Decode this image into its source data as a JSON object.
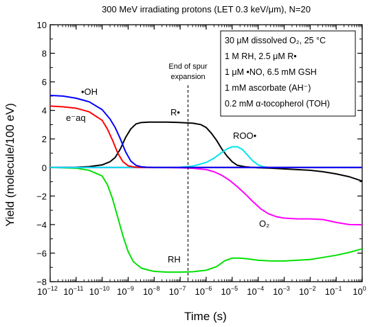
{
  "chart_data": {
    "type": "line",
    "title": "300 MeV irradiating protons (LET 0.3 keV/μm), N=20",
    "xlabel": "Time (s)",
    "ylabel": "Yield (molecule/100 eV)",
    "x_scale": "log",
    "xlim": [
      1e-12,
      1
    ],
    "ylim": [
      -8,
      10
    ],
    "x_ticks": [
      {
        "value": 1e-12,
        "base": "10",
        "exp": "−12"
      },
      {
        "value": 1e-11,
        "base": "10",
        "exp": "−11"
      },
      {
        "value": 1e-10,
        "base": "10",
        "exp": "−10"
      },
      {
        "value": 1e-09,
        "base": "10",
        "exp": "−9"
      },
      {
        "value": 1e-08,
        "base": "10",
        "exp": "−8"
      },
      {
        "value": 1e-07,
        "base": "10",
        "exp": "−7"
      },
      {
        "value": 1e-06,
        "base": "10",
        "exp": "−6"
      },
      {
        "value": 1e-05,
        "base": "10",
        "exp": "−5"
      },
      {
        "value": 0.0001,
        "base": "10",
        "exp": "−4"
      },
      {
        "value": 0.001,
        "base": "10",
        "exp": "−3"
      },
      {
        "value": 0.01,
        "base": "10",
        "exp": "−2"
      },
      {
        "value": 0.1,
        "base": "10",
        "exp": "−1"
      },
      {
        "value": 1,
        "base": "10",
        "exp": "0"
      }
    ],
    "y_ticks": [
      -8,
      -6,
      -4,
      -2,
      0,
      2,
      4,
      6,
      8,
      10
    ],
    "grid": false,
    "legend_position": "top-right",
    "legend_lines": [
      "30 μM dissolved O₂, 25 °C",
      "1 M RH, 2.5 μM R•",
      "1 μM •NO, 6.5 mM GSH",
      "1 mM ascorbate (AH⁻)",
      "0.2 mM α-tocopherol (TOH)"
    ],
    "annotation": {
      "text_line1": "End of spur",
      "text_line2": "expansion",
      "x": 2e-07
    },
    "series": [
      {
        "name": "•OH",
        "color": "#0000ff",
        "log_x": [
          -12,
          -11.5,
          -11,
          -10.5,
          -10,
          -9.7,
          -9.5,
          -9.3,
          -9.1,
          -8.9,
          -8.7,
          -8.5,
          -8.3,
          -8,
          -7,
          -6,
          -4,
          -2,
          0
        ],
        "y": [
          5.05,
          5.0,
          4.85,
          4.6,
          4.05,
          3.4,
          2.8,
          2.0,
          1.1,
          0.45,
          0.15,
          0.05,
          0.02,
          0,
          0,
          0,
          0,
          0,
          0
        ]
      },
      {
        "name": "e⁻aq",
        "color": "#ff0000",
        "log_x": [
          -12,
          -11.5,
          -11,
          -10.5,
          -10,
          -9.8,
          -9.6,
          -9.4,
          -9.2,
          -9.0,
          -8.8,
          -8.6,
          -8.3,
          -8,
          -7,
          -6,
          -4,
          -2,
          0
        ],
        "y": [
          4.3,
          4.25,
          4.15,
          3.9,
          3.3,
          2.7,
          1.9,
          1.0,
          0.4,
          0.12,
          0.04,
          0.01,
          0,
          0,
          0,
          0,
          0,
          0,
          0
        ]
      },
      {
        "name": "R•",
        "color": "#000000",
        "log_x": [
          -12,
          -11,
          -10.5,
          -10,
          -9.7,
          -9.5,
          -9.3,
          -9.1,
          -8.9,
          -8.7,
          -8.5,
          -8.2,
          -8,
          -7.5,
          -7,
          -6.5,
          -6.2,
          -6,
          -5.8,
          -5.6,
          -5.4,
          -5.2,
          -5.0,
          -4.8,
          -4.5,
          -4.2,
          -4,
          -3.5,
          -3,
          -2.5,
          -2,
          -1.5,
          -1,
          -0.5,
          0
        ],
        "y": [
          0,
          0.02,
          0.06,
          0.18,
          0.4,
          0.7,
          1.3,
          2.1,
          2.7,
          3.05,
          3.15,
          3.18,
          3.18,
          3.18,
          3.15,
          3.1,
          3.0,
          2.8,
          2.4,
          1.9,
          1.3,
          0.8,
          0.4,
          0.15,
          0.05,
          0.0,
          -0.02,
          -0.05,
          -0.1,
          -0.15,
          -0.2,
          -0.3,
          -0.45,
          -0.65,
          -0.95
        ]
      },
      {
        "name": "ROO•",
        "color": "#00e5ee",
        "log_x": [
          -12,
          -8,
          -7,
          -6.5,
          -6,
          -5.7,
          -5.4,
          -5.2,
          -5.0,
          -4.8,
          -4.6,
          -4.4,
          -4.2,
          -4.0,
          -3.8,
          -3.6,
          -3.4,
          -3,
          -2,
          0
        ],
        "y": [
          0,
          0,
          0.02,
          0.1,
          0.35,
          0.65,
          1.05,
          1.3,
          1.45,
          1.45,
          1.25,
          0.85,
          0.45,
          0.18,
          0.05,
          0.01,
          0,
          0,
          0,
          0
        ]
      },
      {
        "name": "O₂",
        "color": "#ff00ff",
        "log_x": [
          -12,
          -8,
          -7,
          -6.5,
          -6,
          -5.7,
          -5.4,
          -5.1,
          -4.8,
          -4.5,
          -4.2,
          -3.9,
          -3.6,
          -3.3,
          -3,
          -2.5,
          -2,
          -1.5,
          -1,
          -0.5,
          0
        ],
        "y": [
          0,
          0,
          -0.02,
          -0.06,
          -0.15,
          -0.3,
          -0.55,
          -0.9,
          -1.35,
          -1.85,
          -2.4,
          -2.9,
          -3.25,
          -3.45,
          -3.55,
          -3.6,
          -3.6,
          -3.65,
          -3.85,
          -4.0,
          -4.02
        ]
      },
      {
        "name": "RH",
        "color": "#00e000",
        "log_x": [
          -12,
          -11,
          -10.5,
          -10,
          -9.8,
          -9.6,
          -9.4,
          -9.2,
          -9.0,
          -8.8,
          -8.5,
          -8.2,
          -8,
          -7.5,
          -7,
          -6.5,
          -6,
          -5.6,
          -5.3,
          -5,
          -4.7,
          -4.4,
          -4,
          -3.5,
          -3,
          -2.5,
          -2,
          -1.5,
          -1,
          -0.5,
          0
        ],
        "y": [
          0,
          -0.05,
          -0.2,
          -0.6,
          -1.2,
          -2.2,
          -3.5,
          -4.8,
          -5.9,
          -6.6,
          -7.05,
          -7.2,
          -7.28,
          -7.33,
          -7.33,
          -7.3,
          -7.2,
          -6.95,
          -6.55,
          -6.35,
          -6.35,
          -6.4,
          -6.5,
          -6.55,
          -6.55,
          -6.5,
          -6.45,
          -6.3,
          -6.15,
          -5.95,
          -5.7
        ]
      },
      {
        "name": "baseline",
        "color": "#00e5ee",
        "log_x": [
          -12,
          0
        ],
        "y": [
          0,
          0
        ]
      }
    ],
    "series_labels": [
      {
        "text": "•OH",
        "series": "•OH"
      },
      {
        "text": "e⁻aq",
        "series": "e⁻aq"
      },
      {
        "text": "R•",
        "series": "R•"
      },
      {
        "text": "ROO•",
        "series": "ROO•"
      },
      {
        "text": "O₂",
        "series": "O₂"
      },
      {
        "text": "RH",
        "series": "RH"
      }
    ]
  }
}
